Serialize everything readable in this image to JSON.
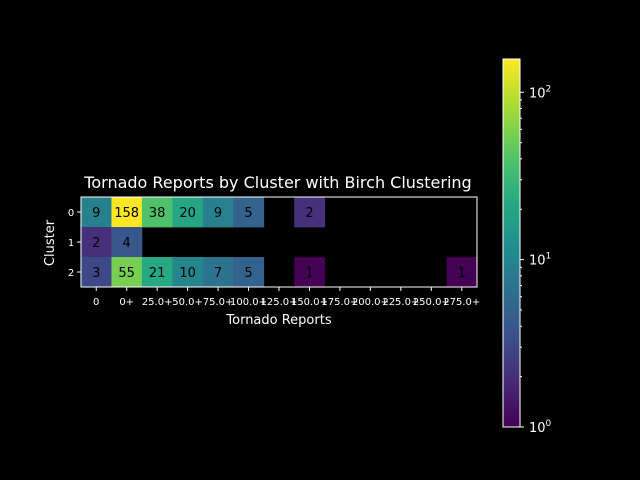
{
  "chart_data": {
    "type": "heatmap",
    "title": "Tornado Reports by Cluster with Birch Clustering",
    "xlabel": "Tornado Reports",
    "ylabel": "Cluster",
    "x_categories": [
      "0",
      "0+",
      "25.0+",
      "50.0+",
      "75.0+",
      "100.0+",
      "125.0+",
      "150.0+",
      "175.0+",
      "200.0+",
      "225.0+",
      "250.0+",
      "275.0+"
    ],
    "y_categories": [
      "0",
      "1",
      "2"
    ],
    "values": [
      [
        9,
        158,
        38,
        20,
        9,
        5,
        null,
        2,
        null,
        null,
        null,
        null,
        null
      ],
      [
        2,
        4,
        null,
        null,
        null,
        null,
        null,
        null,
        null,
        null,
        null,
        null,
        null
      ],
      [
        3,
        55,
        21,
        10,
        7,
        5,
        null,
        1,
        null,
        null,
        null,
        null,
        1
      ]
    ],
    "colormap": "viridis",
    "color_scale": "log",
    "color_range": [
      1,
      158
    ],
    "colorbar_ticks": [
      {
        "value": 1,
        "base": "10",
        "exp": "0"
      },
      {
        "value": 10,
        "base": "10",
        "exp": "1"
      },
      {
        "value": 100,
        "base": "10",
        "exp": "2"
      }
    ],
    "background": "#000000",
    "foreground": "#ffffff"
  }
}
